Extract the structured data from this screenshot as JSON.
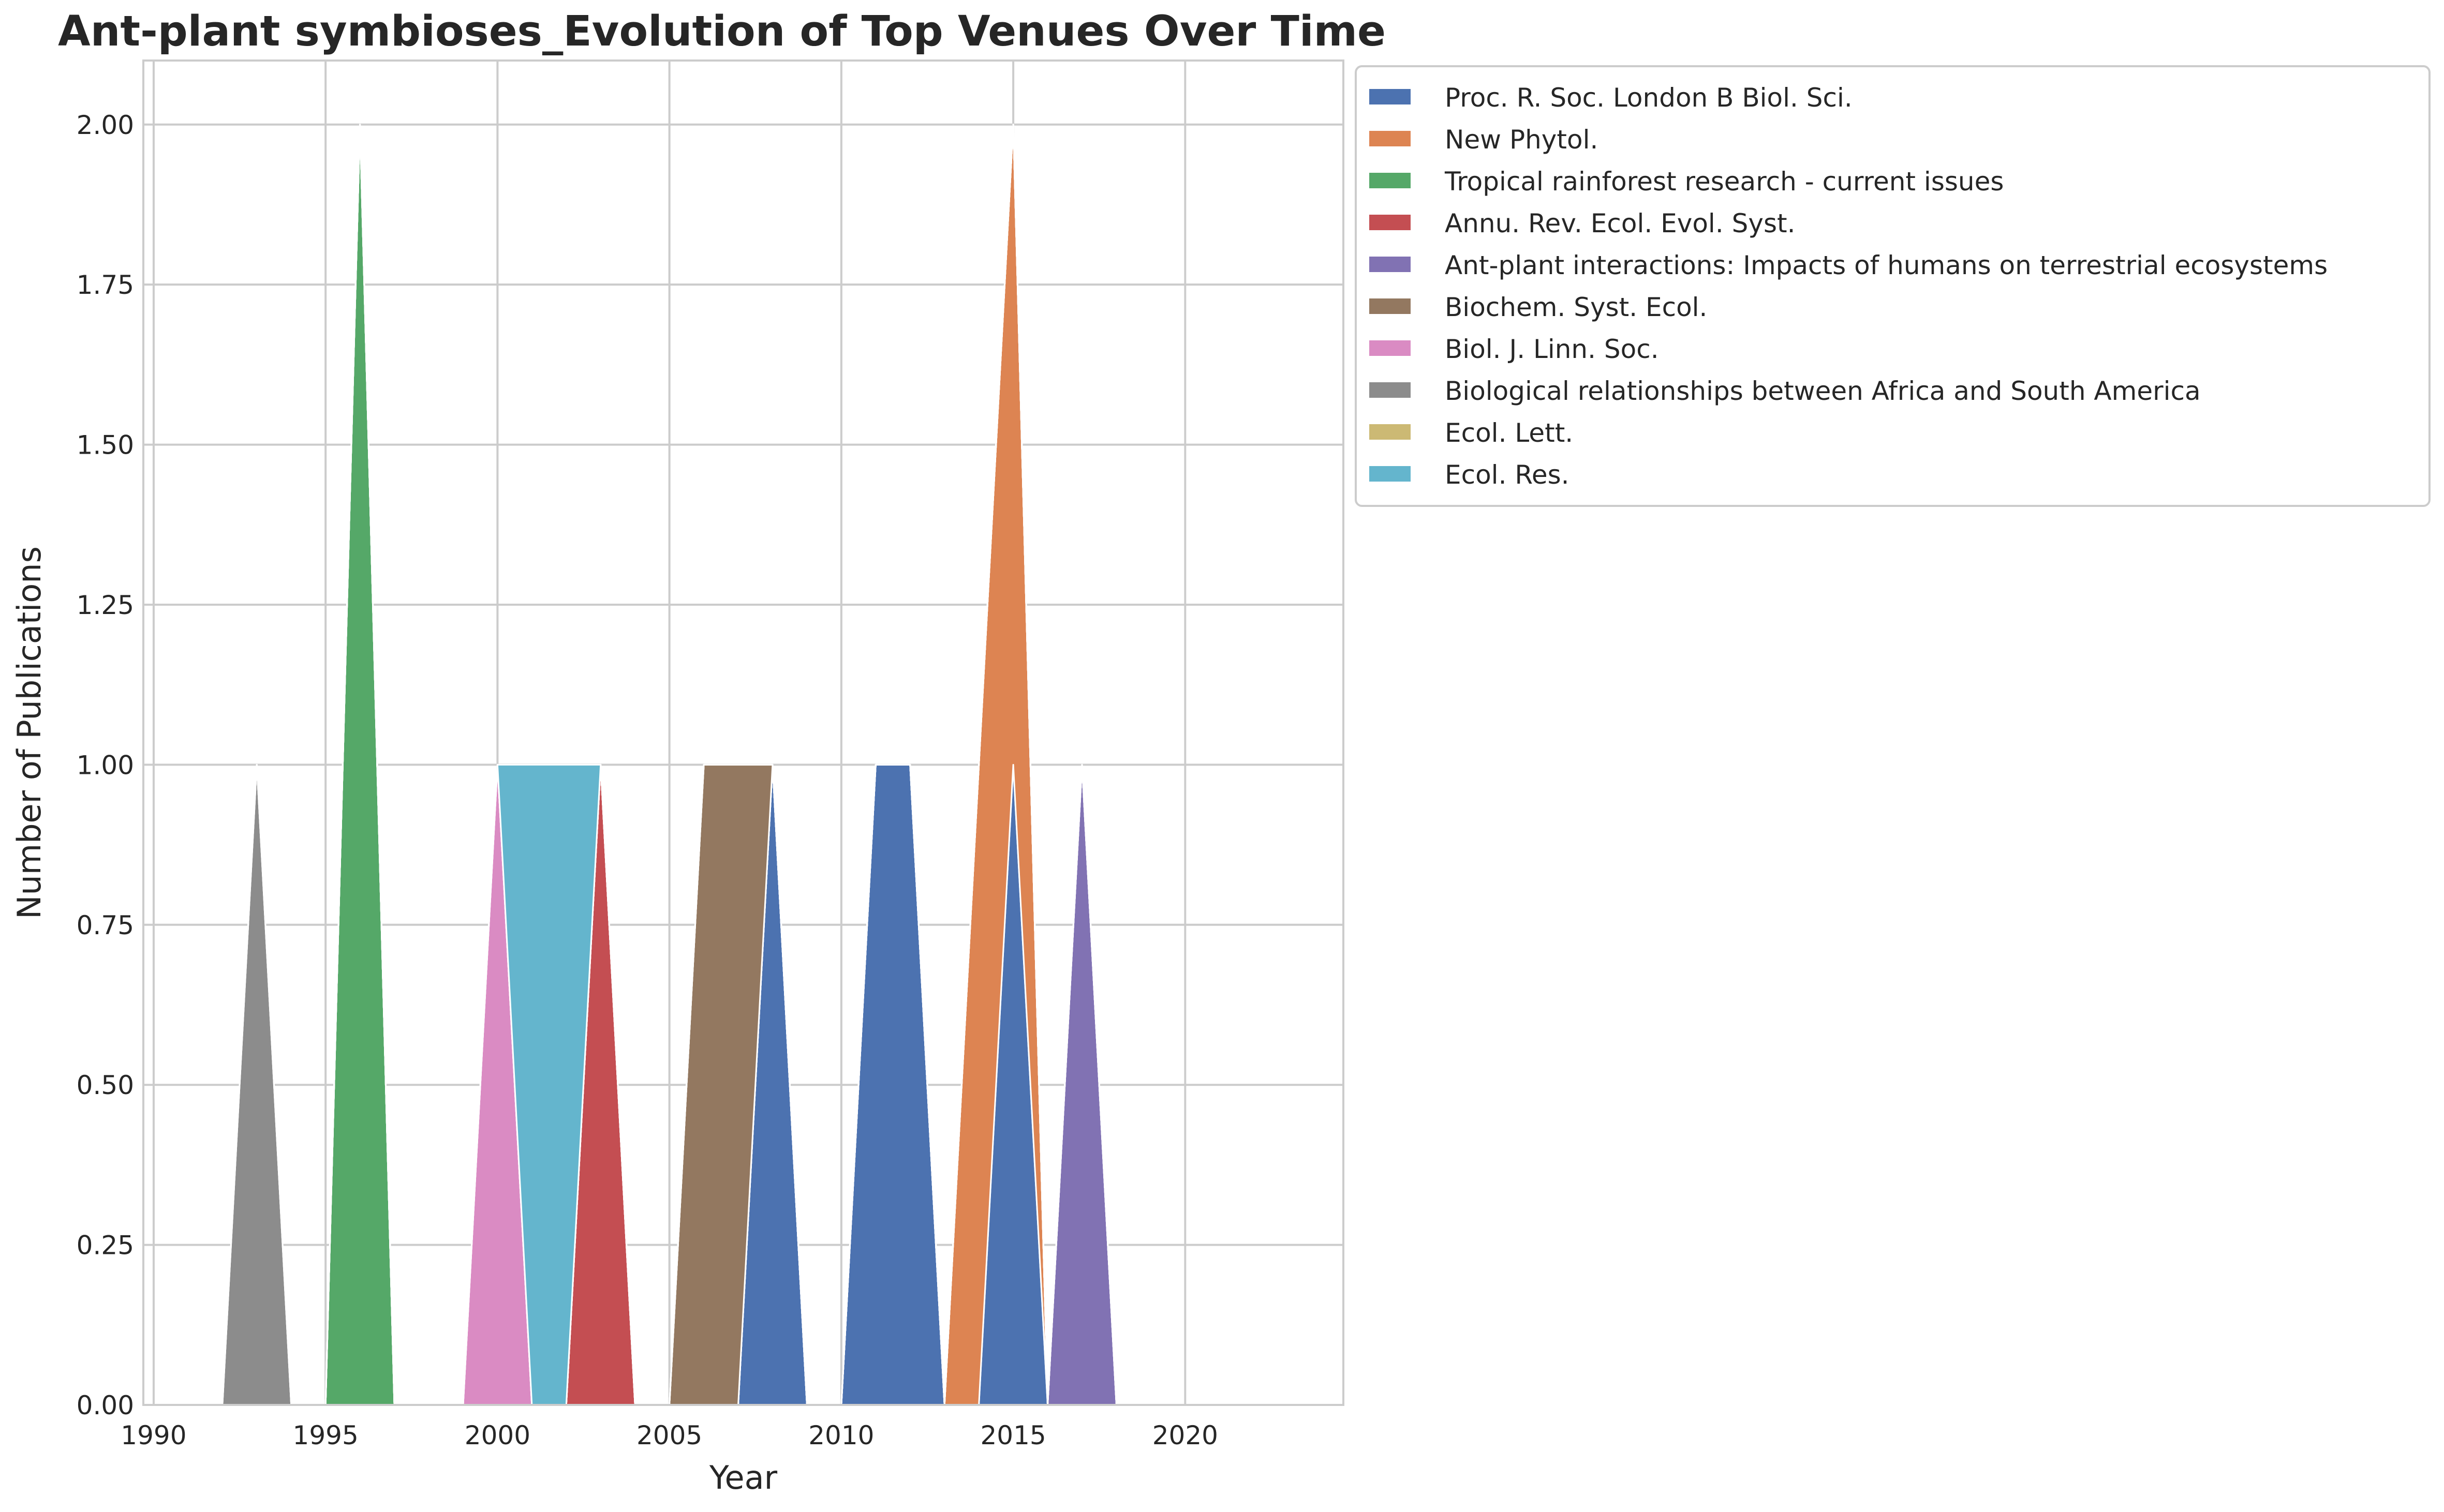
{
  "chart_data": {
    "type": "area",
    "stacked": true,
    "title": "Ant-plant symbioses_Evolution of Top Venues Over Time",
    "xlabel": "Year",
    "ylabel": "Number of Publications",
    "xlim": [
      1989.7,
      2024.6
    ],
    "ylim": [
      0,
      2.1
    ],
    "x_ticks": [
      1990,
      1995,
      2000,
      2005,
      2010,
      2015,
      2020
    ],
    "y_ticks": [
      0.0,
      0.25,
      0.5,
      0.75,
      1.0,
      1.25,
      1.5,
      1.75,
      2.0
    ],
    "y_tick_labels": [
      "0.00",
      "0.25",
      "0.50",
      "0.75",
      "1.00",
      "1.25",
      "1.50",
      "1.75",
      "2.00"
    ],
    "grid": true,
    "legend_position": "outside-upper-right",
    "x": [
      1991,
      1992,
      1993,
      1994,
      1995,
      1996,
      1997,
      1998,
      1999,
      2000,
      2001,
      2002,
      2003,
      2004,
      2005,
      2006,
      2007,
      2008,
      2009,
      2010,
      2011,
      2012,
      2013,
      2014,
      2015,
      2016,
      2017,
      2018,
      2019,
      2020,
      2021,
      2022,
      2023
    ],
    "series": [
      {
        "name": "Proc. R. Soc. London B Biol. Sci.",
        "color": "#4c72b0",
        "values": [
          0,
          0,
          0,
          0,
          0,
          0,
          0,
          0,
          0,
          0,
          0,
          0,
          0,
          0,
          0,
          0,
          0,
          1,
          0,
          0,
          1,
          1,
          0,
          0,
          1,
          0,
          0,
          0,
          0,
          0,
          0,
          0,
          0
        ]
      },
      {
        "name": "New Phytol.",
        "color": "#dd8452",
        "values": [
          0,
          0,
          0,
          0,
          0,
          0,
          0,
          0,
          0,
          0,
          0,
          0,
          0,
          0,
          0,
          0,
          0,
          0,
          0,
          0,
          0,
          0,
          0,
          1,
          1,
          0,
          0,
          0,
          0,
          0,
          0,
          0,
          0
        ]
      },
      {
        "name": "Tropical rainforest research - current issues",
        "color": "#55a868",
        "values": [
          0,
          0,
          0,
          0,
          0,
          2,
          0,
          0,
          0,
          0,
          0,
          0,
          0,
          0,
          0,
          0,
          0,
          0,
          0,
          0,
          0,
          0,
          0,
          0,
          0,
          0,
          0,
          0,
          0,
          0,
          0,
          0,
          0
        ]
      },
      {
        "name": "Annu. Rev. Ecol. Evol. Syst.",
        "color": "#c44e52",
        "values": [
          0,
          0,
          0,
          0,
          0,
          0,
          0,
          0,
          0,
          0,
          0,
          0,
          1,
          0,
          0,
          0,
          0,
          0,
          0,
          0,
          0,
          0,
          0,
          0,
          0,
          0,
          0,
          0,
          0,
          0,
          0,
          0,
          0
        ]
      },
      {
        "name": "Ant-plant interactions: Impacts of humans on terrestrial ecosystems",
        "color": "#8172b3",
        "values": [
          0,
          0,
          0,
          0,
          0,
          0,
          0,
          0,
          0,
          0,
          0,
          0,
          0,
          0,
          0,
          0,
          0,
          0,
          0,
          0,
          0,
          0,
          0,
          0,
          0,
          0,
          1,
          0,
          0,
          0,
          0,
          0,
          0
        ]
      },
      {
        "name": "Biochem. Syst. Ecol.",
        "color": "#937860",
        "values": [
          0,
          0,
          0,
          0,
          0,
          0,
          0,
          0,
          0,
          0,
          0,
          0,
          0,
          0,
          0,
          1,
          1,
          0,
          0,
          0,
          0,
          0,
          0,
          0,
          0,
          0,
          0,
          0,
          0,
          0,
          0,
          0,
          0
        ]
      },
      {
        "name": "Biol. J. Linn. Soc.",
        "color": "#da8bc3",
        "values": [
          0,
          0,
          0,
          0,
          0,
          0,
          0,
          0,
          0,
          1,
          0,
          0,
          0,
          0,
          0,
          0,
          0,
          0,
          0,
          0,
          0,
          0,
          0,
          0,
          0,
          0,
          0,
          0,
          0,
          0,
          0,
          0,
          0
        ]
      },
      {
        "name": "Biological relationships between Africa and South America",
        "color": "#8c8c8c",
        "values": [
          0,
          0,
          1,
          0,
          0,
          0,
          0,
          0,
          0,
          0,
          0,
          0,
          0,
          0,
          0,
          0,
          0,
          0,
          0,
          0,
          0,
          0,
          0,
          0,
          0,
          0,
          0,
          0,
          0,
          0,
          0,
          0,
          0
        ]
      },
      {
        "name": "Ecol. Lett.",
        "color": "#ccb974",
        "values": [
          0,
          0,
          0,
          0,
          0,
          0,
          0,
          0,
          0,
          0,
          0,
          0,
          0,
          0,
          0,
          0,
          0,
          0,
          0,
          0,
          0,
          0,
          0,
          0,
          0,
          0,
          0,
          0,
          0,
          0,
          0,
          0,
          0
        ]
      },
      {
        "name": "Ecol. Res.",
        "color": "#64b5cd",
        "values": [
          0,
          0,
          0,
          0,
          0,
          0,
          0,
          0,
          0,
          0,
          1,
          1,
          0,
          0,
          0,
          0,
          0,
          0,
          0,
          0,
          0,
          0,
          0,
          0,
          0,
          0,
          0,
          0,
          0,
          0,
          0,
          0,
          0
        ]
      }
    ]
  }
}
